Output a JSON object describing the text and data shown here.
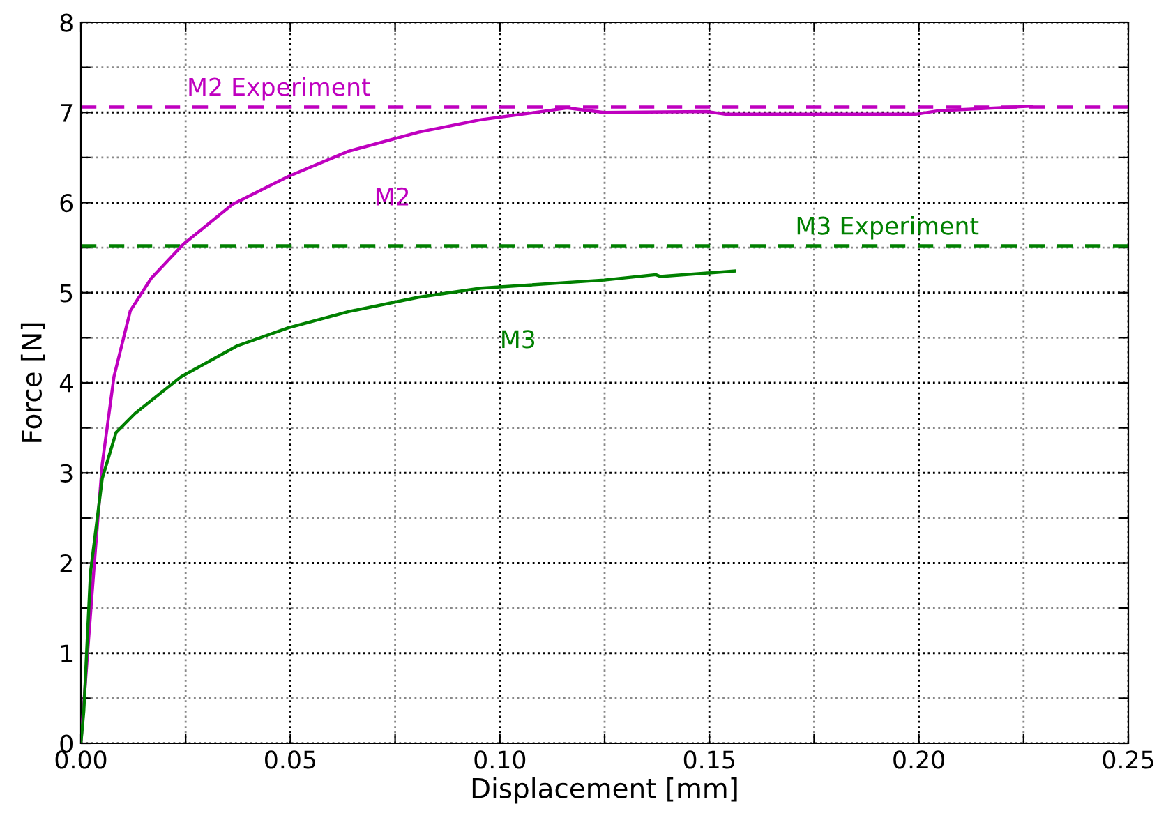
{
  "chart_data": {
    "type": "line",
    "xlabel": "Displacement [mm]",
    "ylabel": "Force [N]",
    "xlim": [
      0,
      0.25
    ],
    "ylim": [
      0,
      8
    ],
    "xticks": [
      {
        "value": 0,
        "label": "0.00"
      },
      {
        "value": 0.025,
        "label": null
      },
      {
        "value": 0.05,
        "label": "0.05"
      },
      {
        "value": 0.075,
        "label": null
      },
      {
        "value": 0.1,
        "label": "0.10"
      },
      {
        "value": 0.125,
        "label": null
      },
      {
        "value": 0.15,
        "label": "0.15"
      },
      {
        "value": 0.175,
        "label": null
      },
      {
        "value": 0.2,
        "label": "0.20"
      },
      {
        "value": 0.225,
        "label": null
      },
      {
        "value": 0.25,
        "label": "0.25"
      }
    ],
    "yticks": [
      0,
      {
        "value": 0.5,
        "label": null
      },
      1,
      {
        "value": 1.5,
        "label": null
      },
      2,
      {
        "value": 2.5,
        "label": null
      },
      3,
      {
        "value": 3.5,
        "label": null
      },
      4,
      {
        "value": 4.5,
        "label": null
      },
      5,
      {
        "value": 5.5,
        "label": null
      },
      6,
      {
        "value": 6.5,
        "label": null
      },
      7,
      {
        "value": 7.5,
        "label": null
      },
      8
    ],
    "grid": true,
    "line_style": "solid",
    "marker": "none",
    "series": [
      {
        "name": "M2",
        "color": "#bf00bf",
        "x": [
          0,
          0.0018,
          0.0034,
          0.0051,
          0.0079,
          0.0118,
          0.0168,
          0.0245,
          0.0362,
          0.0495,
          0.0639,
          0.0806,
          0.0955,
          0.1116,
          0.116,
          0.1248,
          0.1494,
          0.1538,
          0.1993,
          0.2048,
          0.227
        ],
        "values": [
          0,
          1.13,
          2.11,
          3.1,
          4.07,
          4.8,
          5.16,
          5.54,
          5.98,
          6.29,
          6.57,
          6.78,
          6.92,
          7.02,
          7.05,
          7.0,
          7.01,
          6.98,
          6.98,
          7.02,
          7.07
        ]
      },
      {
        "name": "M3",
        "color": "#008000",
        "x": [
          0,
          0.0007,
          0.0023,
          0.0051,
          0.0084,
          0.0129,
          0.024,
          0.0373,
          0.0495,
          0.0639,
          0.0806,
          0.0955,
          0.1249,
          0.1372,
          0.1383,
          0.156
        ],
        "values": [
          0,
          0.36,
          1.9,
          2.94,
          3.45,
          3.66,
          4.07,
          4.41,
          4.61,
          4.79,
          4.95,
          5.05,
          5.14,
          5.2,
          5.18,
          5.24
        ]
      }
    ],
    "ref_lines": [
      {
        "axis": "y",
        "value": 7.06,
        "color": "#bf00bf",
        "line_style": "dashed"
      },
      {
        "axis": "y",
        "value": 5.52,
        "color": "#008000",
        "line_style": "dashed"
      }
    ],
    "annotations": [
      {
        "text": "M2 Experiment",
        "x": 0.0253,
        "y": 7.13
      },
      {
        "text": "M3 Experiment",
        "x": 0.1705,
        "y": 5.59
      }
    ]
  }
}
